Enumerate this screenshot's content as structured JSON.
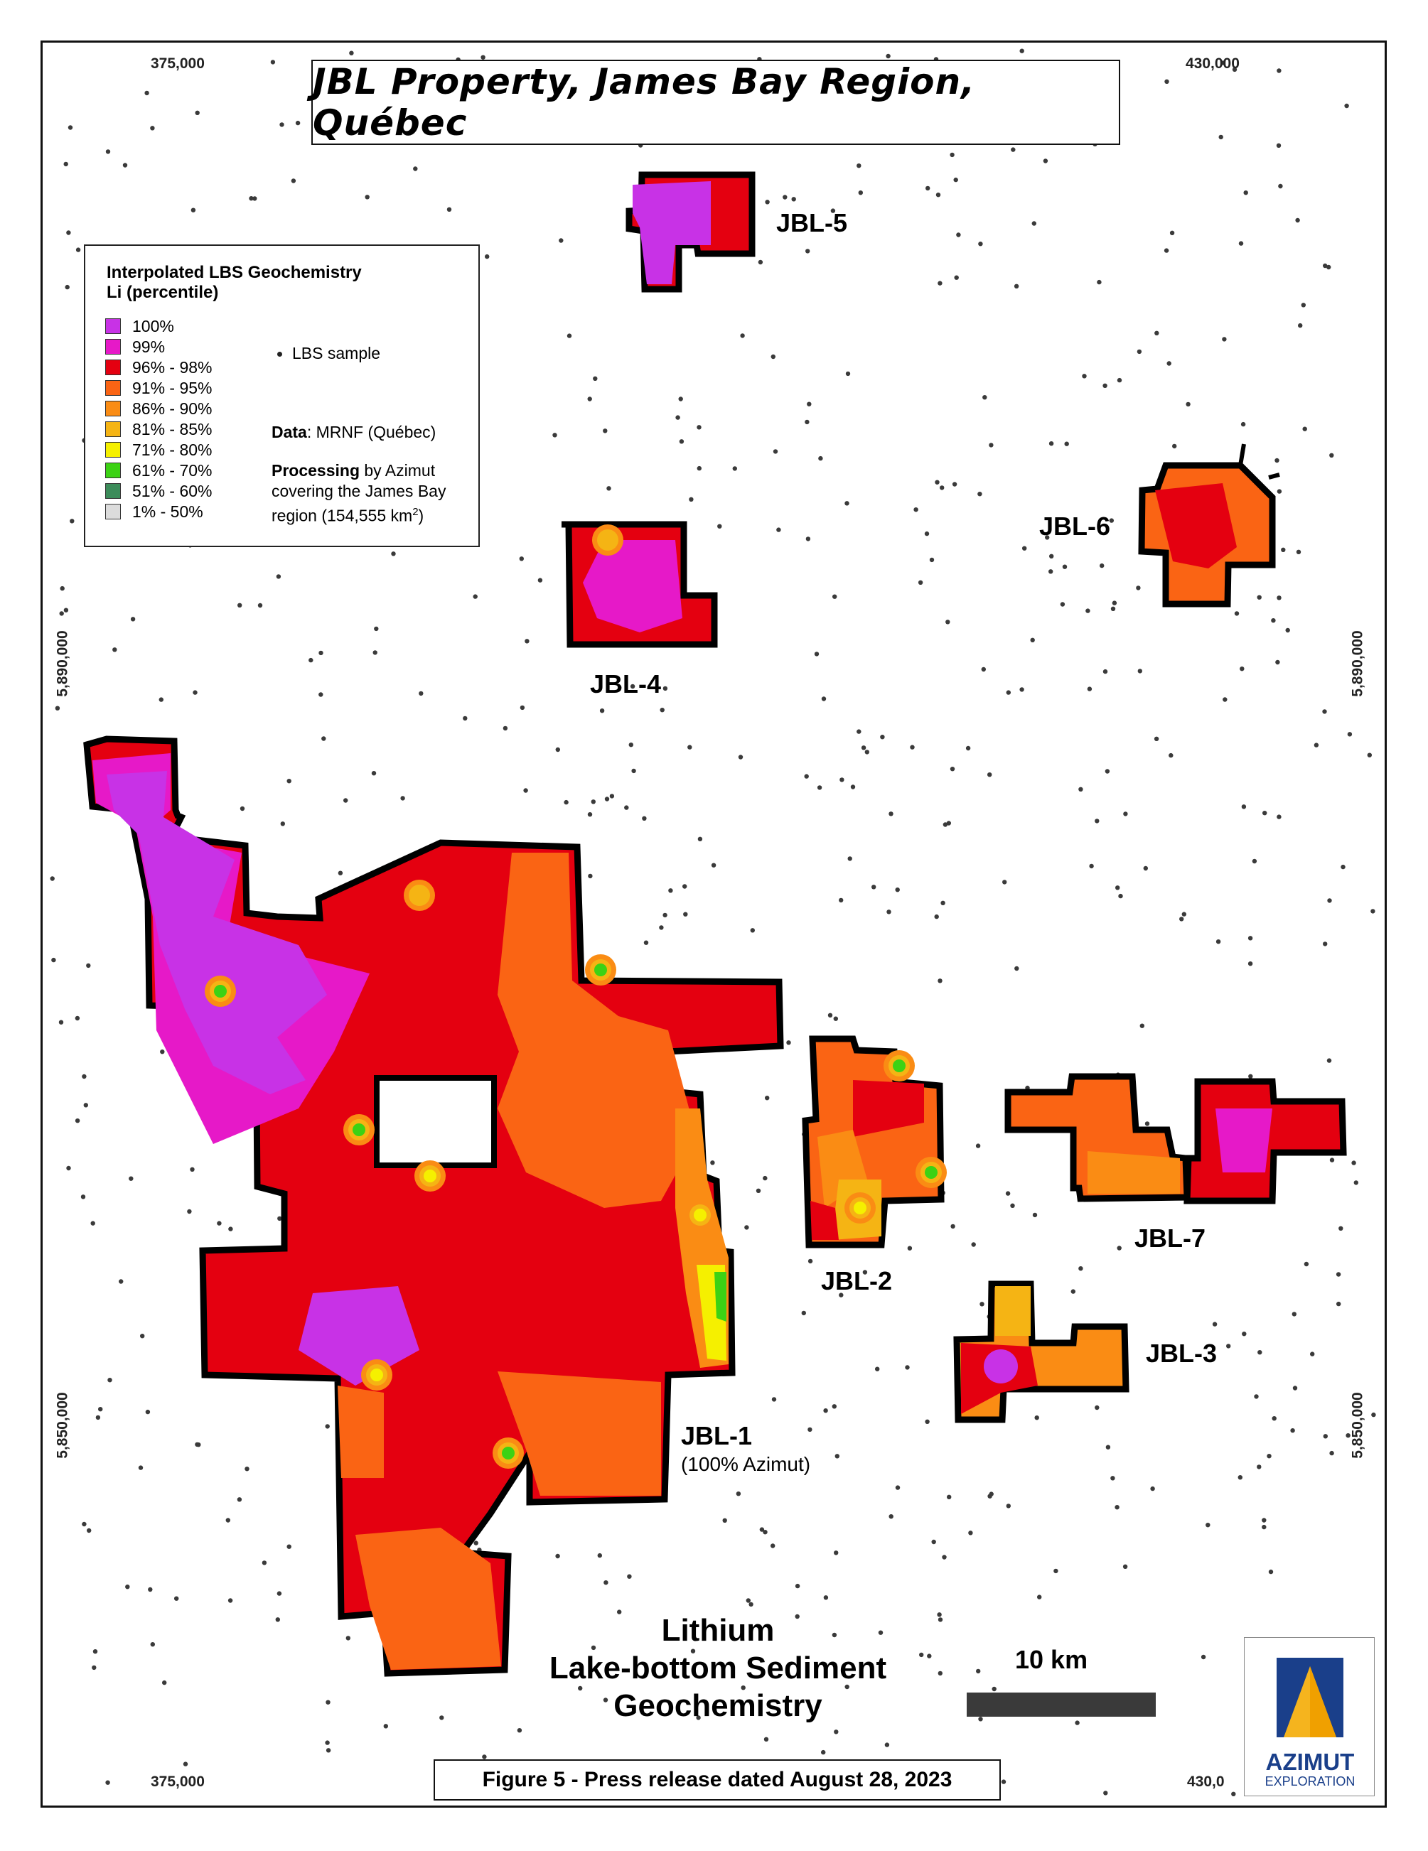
{
  "map": {
    "title": "JBL Property, James Bay Region, Québec",
    "coords": {
      "x_left": "375,000",
      "x_right": "430,000",
      "x_right_bottom": "430,0",
      "y_upper": "5,890,000",
      "y_lower": "5,850,000"
    },
    "legend": {
      "heading_line1": "Interpolated LBS Geochemistry",
      "heading_line2": "Li (percentile)",
      "classes": [
        {
          "label": "100%",
          "color": "#c832e6"
        },
        {
          "label": "99%",
          "color": "#e619c8"
        },
        {
          "label": "96% - 98%",
          "color": "#e40010"
        },
        {
          "label": "91% - 95%",
          "color": "#fa6414"
        },
        {
          "label": "86% - 90%",
          "color": "#fa8c14"
        },
        {
          "label": "81% - 85%",
          "color": "#f5b414"
        },
        {
          "label": "71% - 80%",
          "color": "#f5f000"
        },
        {
          "label": "61% - 70%",
          "color": "#3cd214"
        },
        {
          "label": "51% - 60%",
          "color": "#3c8c5a"
        },
        {
          "label": "1% - 50%",
          "color": "#dcdcdc"
        }
      ],
      "sample_label": "LBS sample",
      "data_label": "Data",
      "data_value": ": MRNF (Québec)",
      "processing_label": "Processing",
      "processing_line1": " by Azimut",
      "processing_line2": "covering the James Bay",
      "processing_line3_pre": "region (154,555 km",
      "processing_line3_sup": "2",
      "processing_line3_post": ")"
    },
    "properties": [
      {
        "name": "JBL-1",
        "sub": "(100% Azimut)"
      },
      {
        "name": "JBL-2"
      },
      {
        "name": "JBL-3"
      },
      {
        "name": "JBL-4"
      },
      {
        "name": "JBL-5"
      },
      {
        "name": "JBL-6"
      },
      {
        "name": "JBL-7"
      }
    ],
    "main_title": [
      "Lithium",
      "Lake-bottom Sediment",
      "Geochemistry"
    ],
    "scale_label": "10 km",
    "figure_caption": "Figure 5 - Press release dated August 28, 2023",
    "logo": {
      "word1": "AZIMUT",
      "word2": "EXPLORATION"
    }
  }
}
